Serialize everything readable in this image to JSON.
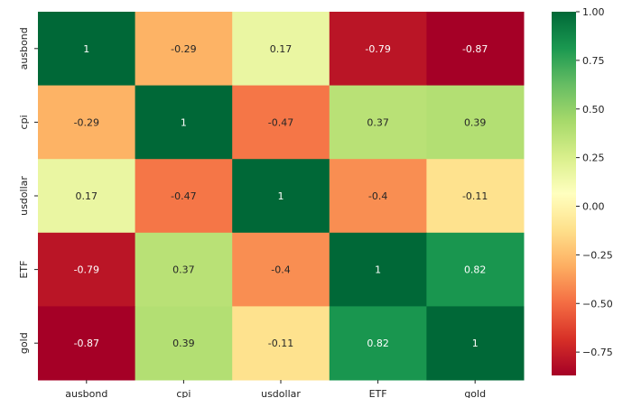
{
  "chart_data": {
    "type": "heatmap",
    "row_labels": [
      "ausbond",
      "cpi",
      "usdollar",
      "ETF",
      "gold"
    ],
    "col_labels": [
      "ausbond",
      "cpi",
      "usdollar",
      "ETF",
      "gold"
    ],
    "values": [
      [
        1,
        -0.29,
        0.17,
        -0.79,
        -0.87
      ],
      [
        -0.29,
        1,
        -0.47,
        0.37,
        0.39
      ],
      [
        0.17,
        -0.47,
        1,
        -0.4,
        -0.11
      ],
      [
        -0.79,
        0.37,
        -0.4,
        1,
        0.82
      ],
      [
        -0.87,
        0.39,
        -0.11,
        0.82,
        1
      ]
    ],
    "cell_labels": [
      [
        "1",
        "-0.29",
        "0.17",
        "-0.79",
        "-0.87"
      ],
      [
        "-0.29",
        "1",
        "-0.47",
        "0.37",
        "0.39"
      ],
      [
        "0.17",
        "-0.47",
        "1",
        "-0.4",
        "-0.11"
      ],
      [
        "-0.79",
        "0.37",
        "-0.4",
        "1",
        "0.82"
      ],
      [
        "-0.87",
        "0.39",
        "-0.11",
        "0.82",
        "1"
      ]
    ],
    "colormap": "RdYlGn",
    "vmin": -0.87,
    "vmax": 1.0,
    "colorbar_ticks": [
      1.0,
      0.75,
      0.5,
      0.25,
      0.0,
      -0.25,
      -0.5,
      -0.75
    ],
    "colorbar_tick_labels": [
      "1.00",
      "0.75",
      "0.50",
      "0.25",
      "0.00",
      "−0.25",
      "−0.50",
      "−0.75"
    ],
    "grid": false,
    "legend": "colorbar-right"
  }
}
